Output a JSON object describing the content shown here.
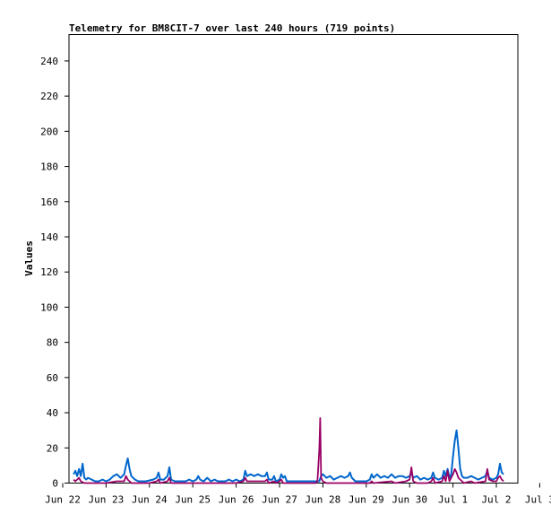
{
  "chart_data": {
    "type": "line",
    "title": "Telemetry for BM8CIT-7 over last 240 hours (719 points)",
    "xlabel": "",
    "ylabel": "Values",
    "ylim": [
      0,
      255
    ],
    "yticks": [
      0,
      20,
      40,
      60,
      80,
      100,
      120,
      140,
      160,
      180,
      200,
      220,
      240
    ],
    "xlim": [
      0,
      240
    ],
    "xticks": [
      {
        "label": "Jun 22",
        "x": 0
      },
      {
        "label": "Jun 23",
        "x": 24
      },
      {
        "label": "Jun 24",
        "x": 48
      },
      {
        "label": "Jun 25",
        "x": 72
      },
      {
        "label": "Jun 26",
        "x": 96
      },
      {
        "label": "Jun 27",
        "x": 120
      },
      {
        "label": "Jun 28",
        "x": 144
      },
      {
        "label": "Jun 29",
        "x": 168
      },
      {
        "label": "Jun 30",
        "x": 192
      },
      {
        "label": "Jul 1",
        "x": 216
      },
      {
        "label": "Jul 2",
        "x": 240
      },
      {
        "label": "Jul 3",
        "x": 264
      }
    ],
    "grid": false,
    "legend": "none",
    "series": [
      {
        "color": "#0066cc",
        "points": [
          [
            6,
            5
          ],
          [
            7,
            7
          ],
          [
            8,
            4
          ],
          [
            9,
            8
          ],
          [
            10,
            4
          ],
          [
            11,
            11
          ],
          [
            12,
            3
          ],
          [
            13,
            2
          ],
          [
            14,
            3
          ],
          [
            16,
            2
          ],
          [
            18,
            1
          ],
          [
            20,
            1
          ],
          [
            22,
            2
          ],
          [
            24,
            1
          ],
          [
            26,
            2
          ],
          [
            28,
            4
          ],
          [
            30,
            5
          ],
          [
            32,
            3
          ],
          [
            34,
            5
          ],
          [
            35,
            10
          ],
          [
            36,
            14
          ],
          [
            37,
            8
          ],
          [
            38,
            4
          ],
          [
            40,
            2
          ],
          [
            42,
            1
          ],
          [
            46,
            1
          ],
          [
            50,
            2
          ],
          [
            52,
            3
          ],
          [
            53,
            6
          ],
          [
            54,
            2
          ],
          [
            56,
            2
          ],
          [
            58,
            4
          ],
          [
            59,
            9
          ],
          [
            60,
            2
          ],
          [
            62,
            1
          ],
          [
            64,
            1
          ],
          [
            68,
            1
          ],
          [
            70,
            2
          ],
          [
            72,
            1
          ],
          [
            74,
            2
          ],
          [
            75,
            4
          ],
          [
            76,
            2
          ],
          [
            78,
            1
          ],
          [
            80,
            3
          ],
          [
            82,
            1
          ],
          [
            84,
            2
          ],
          [
            86,
            1
          ],
          [
            90,
            1
          ],
          [
            92,
            2
          ],
          [
            94,
            1
          ],
          [
            96,
            2
          ],
          [
            98,
            1
          ],
          [
            100,
            2
          ],
          [
            101,
            7
          ],
          [
            102,
            4
          ],
          [
            104,
            5
          ],
          [
            106,
            4
          ],
          [
            108,
            5
          ],
          [
            110,
            4
          ],
          [
            112,
            4
          ],
          [
            113,
            6
          ],
          [
            114,
            2
          ],
          [
            116,
            2
          ],
          [
            117,
            4
          ],
          [
            118,
            1
          ],
          [
            120,
            2
          ],
          [
            121,
            5
          ],
          [
            122,
            3
          ],
          [
            123,
            4
          ],
          [
            124,
            1
          ],
          [
            128,
            1
          ],
          [
            132,
            1
          ],
          [
            136,
            1
          ],
          [
            140,
            1
          ],
          [
            142,
            1
          ],
          [
            143,
            4
          ],
          [
            144,
            5
          ],
          [
            146,
            3
          ],
          [
            148,
            4
          ],
          [
            150,
            2
          ],
          [
            152,
            3
          ],
          [
            154,
            4
          ],
          [
            156,
            3
          ],
          [
            158,
            4
          ],
          [
            159,
            6
          ],
          [
            160,
            3
          ],
          [
            162,
            1
          ],
          [
            165,
            1
          ],
          [
            168,
            1
          ],
          [
            170,
            2
          ],
          [
            171,
            5
          ],
          [
            172,
            3
          ],
          [
            174,
            5
          ],
          [
            176,
            3
          ],
          [
            178,
            4
          ],
          [
            180,
            3
          ],
          [
            182,
            5
          ],
          [
            184,
            3
          ],
          [
            186,
            4
          ],
          [
            188,
            4
          ],
          [
            190,
            3
          ],
          [
            192,
            4
          ],
          [
            193,
            6
          ],
          [
            194,
            3
          ],
          [
            196,
            4
          ],
          [
            198,
            2
          ],
          [
            200,
            3
          ],
          [
            202,
            2
          ],
          [
            204,
            3
          ],
          [
            205,
            6
          ],
          [
            206,
            3
          ],
          [
            208,
            2
          ],
          [
            210,
            3
          ],
          [
            211,
            7
          ],
          [
            212,
            4
          ],
          [
            213,
            8
          ],
          [
            214,
            3
          ],
          [
            215,
            5
          ],
          [
            216,
            15
          ],
          [
            217,
            24
          ],
          [
            218,
            30
          ],
          [
            219,
            20
          ],
          [
            220,
            8
          ],
          [
            221,
            4
          ],
          [
            222,
            3
          ],
          [
            224,
            3
          ],
          [
            226,
            4
          ],
          [
            228,
            3
          ],
          [
            230,
            2
          ],
          [
            232,
            3
          ],
          [
            234,
            4
          ],
          [
            235,
            7
          ],
          [
            236,
            3
          ],
          [
            238,
            2
          ],
          [
            240,
            3
          ],
          [
            241,
            5
          ],
          [
            242,
            11
          ],
          [
            243,
            6
          ],
          [
            244,
            5
          ]
        ]
      },
      {
        "color": "#990066",
        "points": [
          [
            6,
            2
          ],
          [
            7,
            1
          ],
          [
            9,
            3
          ],
          [
            10,
            1
          ],
          [
            12,
            0
          ],
          [
            20,
            0
          ],
          [
            24,
            0
          ],
          [
            30,
            1
          ],
          [
            34,
            1
          ],
          [
            35,
            4
          ],
          [
            36,
            2
          ],
          [
            38,
            0
          ],
          [
            48,
            0
          ],
          [
            52,
            1
          ],
          [
            53,
            2
          ],
          [
            54,
            0
          ],
          [
            58,
            1
          ],
          [
            59,
            3
          ],
          [
            60,
            0
          ],
          [
            72,
            0
          ],
          [
            96,
            0
          ],
          [
            100,
            1
          ],
          [
            101,
            3
          ],
          [
            102,
            1
          ],
          [
            104,
            1
          ],
          [
            112,
            1
          ],
          [
            113,
            2
          ],
          [
            114,
            0
          ],
          [
            117,
            1
          ],
          [
            118,
            0
          ],
          [
            120,
            1
          ],
          [
            121,
            2
          ],
          [
            122,
            0
          ],
          [
            136,
            0
          ],
          [
            140,
            0
          ],
          [
            141,
            1
          ],
          [
            142,
            19
          ],
          [
            142.5,
            37
          ],
          [
            143,
            3
          ],
          [
            144,
            1
          ],
          [
            146,
            0
          ],
          [
            160,
            0
          ],
          [
            170,
            0
          ],
          [
            171,
            1
          ],
          [
            172,
            0
          ],
          [
            182,
            1
          ],
          [
            184,
            0
          ],
          [
            190,
            1
          ],
          [
            192,
            2
          ],
          [
            193,
            9
          ],
          [
            194,
            1
          ],
          [
            196,
            0
          ],
          [
            202,
            0
          ],
          [
            204,
            1
          ],
          [
            205,
            3
          ],
          [
            206,
            0
          ],
          [
            210,
            1
          ],
          [
            211,
            4
          ],
          [
            212,
            1
          ],
          [
            213,
            7
          ],
          [
            214,
            1
          ],
          [
            215,
            3
          ],
          [
            216,
            5
          ],
          [
            217,
            8
          ],
          [
            218,
            6
          ],
          [
            219,
            3
          ],
          [
            220,
            2
          ],
          [
            221,
            1
          ],
          [
            222,
            0
          ],
          [
            226,
            1
          ],
          [
            228,
            0
          ],
          [
            234,
            1
          ],
          [
            235,
            8
          ],
          [
            236,
            2
          ],
          [
            238,
            1
          ],
          [
            240,
            1
          ],
          [
            241,
            3
          ],
          [
            242,
            4
          ],
          [
            243,
            2
          ],
          [
            244,
            1
          ]
        ]
      }
    ]
  }
}
